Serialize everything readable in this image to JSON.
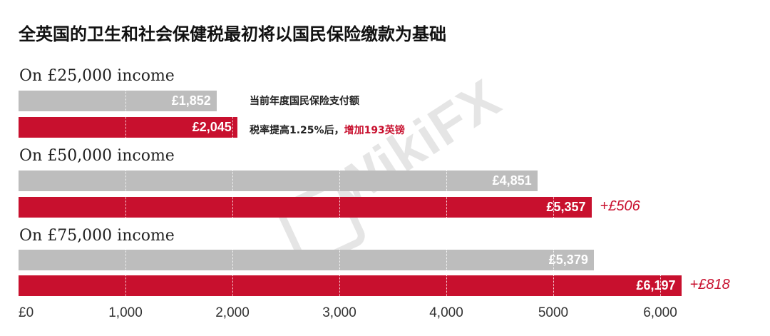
{
  "title": "全英国的卫生和社会保健税最初将以国民保险缴款为基础",
  "legend": {
    "current": "当前年度国民保险支付额",
    "new_prefix": "税率提高1.25%后，",
    "new_highlight": "增加193英镑"
  },
  "watermark": "WikiFX",
  "colors": {
    "current": "#bdbdbd",
    "new": "#c8102e"
  },
  "chart_data": {
    "type": "bar",
    "orientation": "horizontal",
    "title": "全英国的卫生和社会保健税最初将以国民保险缴款为基础",
    "xlim": [
      0,
      6300
    ],
    "x_tick_values": [
      0,
      1000,
      2000,
      3000,
      4000,
      5000,
      6000
    ],
    "x_tick_labels": [
      "£0",
      "1,000",
      "2,000",
      "3,000",
      "4,000",
      "5000",
      "6,000"
    ],
    "categories": [
      "On £25,000 income",
      "On £50,000 income",
      "On £75,000 income"
    ],
    "series": [
      {
        "values": [
          1852,
          4851,
          5379
        ],
        "labels": [
          "£1,852",
          "£4,851",
          "£5,379"
        ]
      },
      {
        "values": [
          2045,
          5357,
          6197
        ],
        "labels": [
          "£2,045",
          "£5,357",
          "£6,197"
        ]
      }
    ],
    "increase_labels": [
      "",
      "+£506",
      "+£818"
    ]
  }
}
